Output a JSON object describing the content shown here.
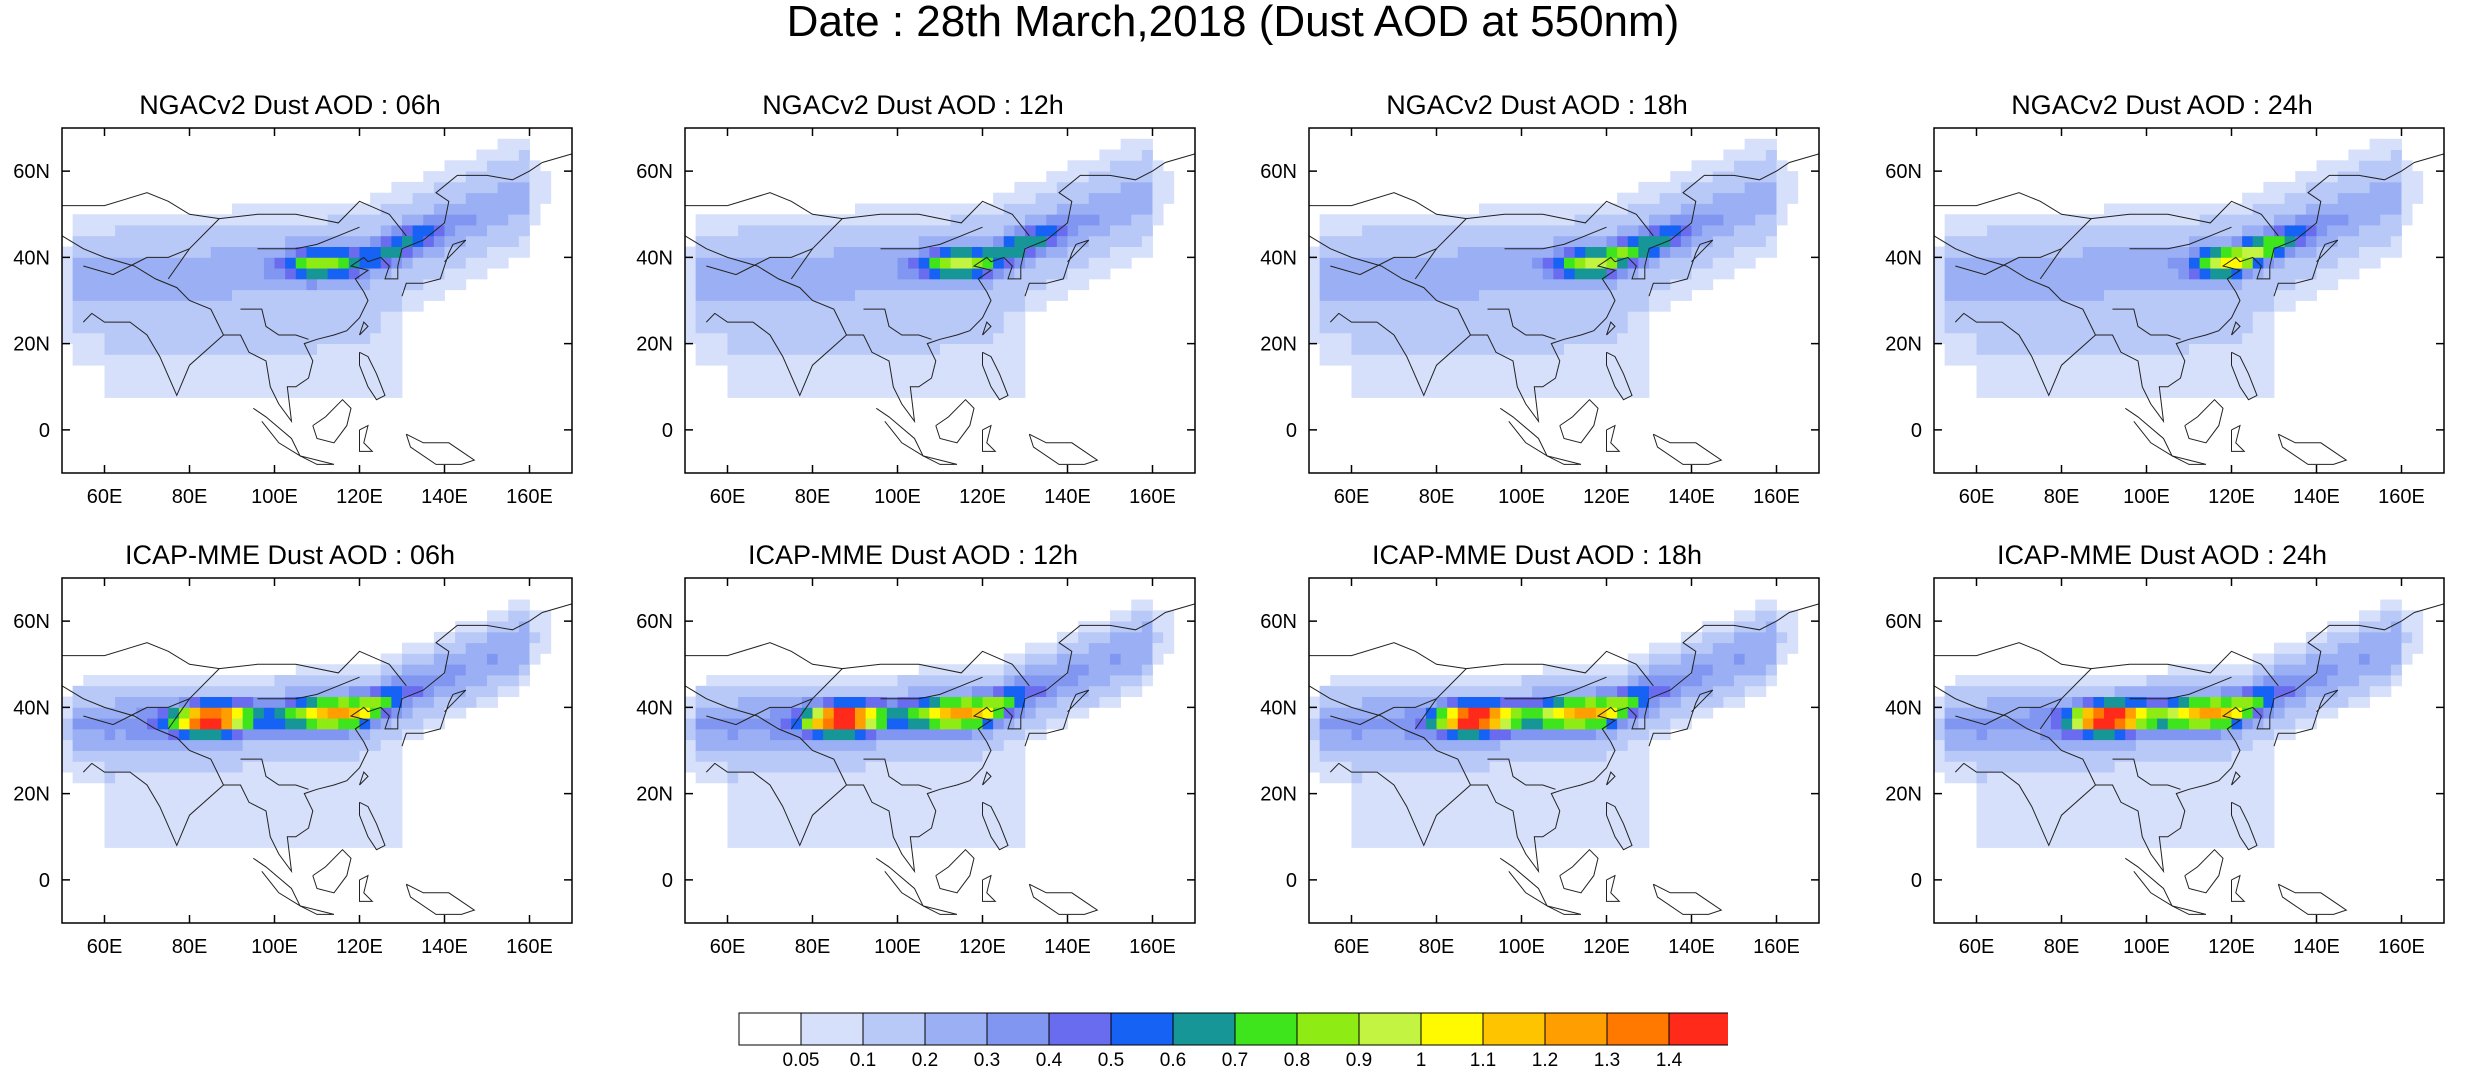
{
  "title": "Date : 28th March,2018 (Dust AOD at 550nm)",
  "panels": [
    {
      "title": "NGACv2 Dust AOD : 06h",
      "model": "NGACv2",
      "hour": "06h"
    },
    {
      "title": "NGACv2 Dust AOD : 12h",
      "model": "NGACv2",
      "hour": "12h"
    },
    {
      "title": "NGACv2 Dust AOD : 18h",
      "model": "NGACv2",
      "hour": "18h"
    },
    {
      "title": "NGACv2 Dust AOD : 24h",
      "model": "NGACv2",
      "hour": "24h"
    },
    {
      "title": "ICAP-MME Dust AOD : 06h",
      "model": "ICAP-MME",
      "hour": "06h"
    },
    {
      "title": "ICAP-MME Dust AOD : 12h",
      "model": "ICAP-MME",
      "hour": "12h"
    },
    {
      "title": "ICAP-MME Dust AOD : 18h",
      "model": "ICAP-MME",
      "hour": "18h"
    },
    {
      "title": "ICAP-MME Dust AOD : 24h",
      "model": "ICAP-MME",
      "hour": "24h"
    }
  ],
  "map": {
    "lon_range": [
      50,
      170
    ],
    "lat_range": [
      -10,
      70
    ],
    "x_ticks": [
      "60E",
      "80E",
      "100E",
      "120E",
      "140E",
      "160E"
    ],
    "x_tick_values": [
      60,
      80,
      100,
      120,
      140,
      160
    ],
    "y_ticks": [
      "0",
      "20N",
      "40N",
      "60N"
    ],
    "y_tick_values": [
      0,
      20,
      40,
      60
    ]
  },
  "colorbar": {
    "labels": [
      "0.05",
      "0.1",
      "0.2",
      "0.3",
      "0.4",
      "0.5",
      "0.6",
      "0.7",
      "0.8",
      "0.9",
      "1",
      "1.1",
      "1.2",
      "1.3",
      "1.4"
    ],
    "colors": [
      "#ffffff",
      "#d6e0fb",
      "#b8c8f7",
      "#9bb0f4",
      "#8196f0",
      "#6a6cf0",
      "#1662f4",
      "#169696",
      "#3ee41c",
      "#8eeb13",
      "#c2f441",
      "#fffa00",
      "#ffc400",
      "#ff9e00",
      "#ff7900",
      "#ff2a1a"
    ]
  }
}
